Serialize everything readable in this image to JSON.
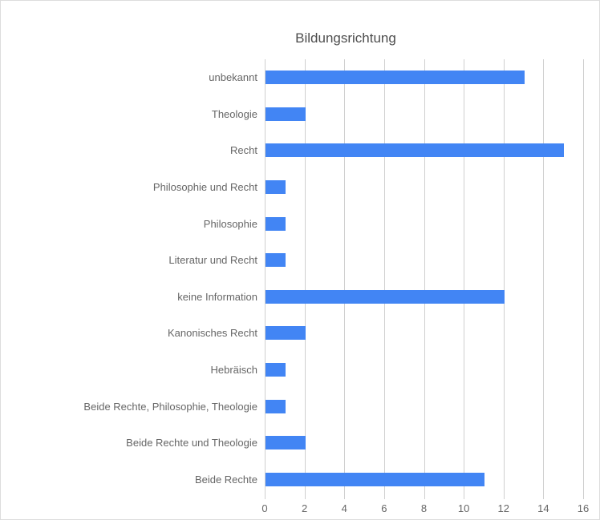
{
  "chart": {
    "title": "Bildungsrichtung"
  },
  "chart_data": {
    "type": "bar",
    "orientation": "horizontal",
    "title": "Bildungsrichtung",
    "categories": [
      "unbekannt",
      "Theologie",
      "Recht",
      "Philosophie und Recht",
      "Philosophie",
      "Literatur und Recht",
      "keine Information",
      "Kanonisches Recht",
      "Hebräisch",
      "Beide Rechte, Philosophie, Theologie",
      "Beide Rechte und Theologie",
      "Beide Rechte"
    ],
    "values": [
      13,
      2,
      15,
      1,
      1,
      1,
      12,
      2,
      1,
      1,
      2,
      11
    ],
    "xlabel": "",
    "ylabel": "",
    "xlim": [
      0,
      16
    ],
    "xticks": [
      0,
      2,
      4,
      6,
      8,
      10,
      12,
      14,
      16
    ],
    "grid": "vertical",
    "legend": "none"
  },
  "colors": {
    "bar": "#4285f4",
    "gridline": "#cfcfcf",
    "title_text": "#4d4d4d",
    "axis_text": "#666666",
    "frame_border": "#dddddd",
    "background": "#ffffff"
  }
}
